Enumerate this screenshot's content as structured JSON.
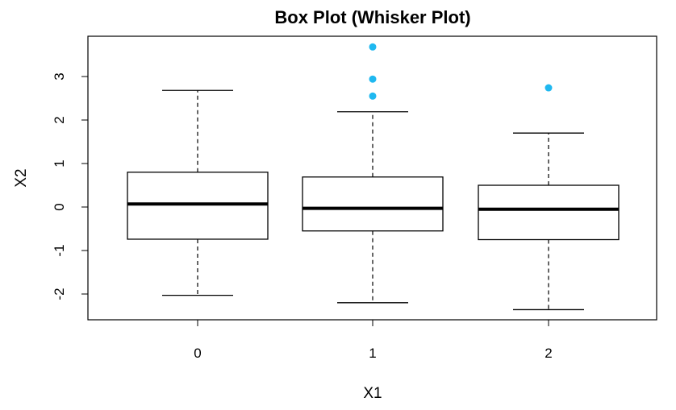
{
  "chart_data": {
    "type": "box",
    "title": "Box Plot (Whisker Plot)",
    "xlabel": "X1",
    "ylabel": "X2",
    "categories": [
      "0",
      "1",
      "2"
    ],
    "ylim": [
      -2.6,
      3.9
    ],
    "yticks": [
      "-2",
      "-1",
      "0",
      "1",
      "2",
      "3"
    ],
    "grid": false,
    "boxes": [
      {
        "category": "0",
        "whisker_low": -2.03,
        "q1": -0.74,
        "median": 0.07,
        "q3": 0.8,
        "whisker_high": 2.68,
        "outliers": []
      },
      {
        "category": "1",
        "whisker_low": -2.2,
        "q1": -0.55,
        "median": -0.03,
        "q3": 0.69,
        "whisker_high": 2.19,
        "outliers": [
          2.55,
          2.94,
          3.68
        ]
      },
      {
        "category": "2",
        "whisker_low": -2.36,
        "q1": -0.75,
        "median": -0.05,
        "q3": 0.5,
        "whisker_high": 1.7,
        "outliers": [
          2.74
        ]
      }
    ],
    "outlier_color": "#1fb8f0"
  }
}
